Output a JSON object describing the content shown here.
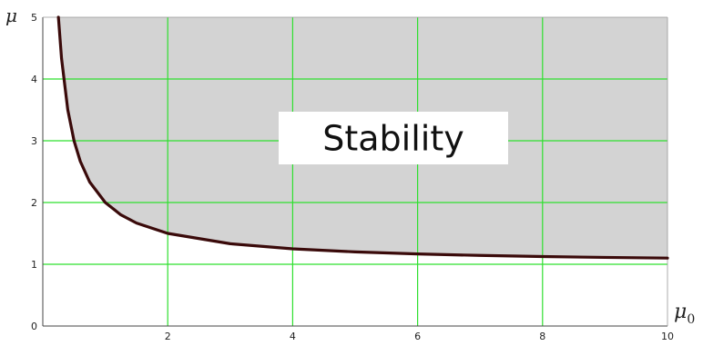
{
  "chart_data": {
    "type": "area",
    "title": "",
    "xlabel": "μ",
    "xlabel_sub": "0",
    "ylabel": "μ",
    "xlim": [
      0,
      10
    ],
    "ylim": [
      0,
      5
    ],
    "x_ticks": [
      2,
      4,
      6,
      8,
      10
    ],
    "y_ticks": [
      0,
      1,
      2,
      3,
      4,
      5
    ],
    "grid": true,
    "annotation": "Stability",
    "series": [
      {
        "x": [
          0.25,
          0.3,
          0.4,
          0.5,
          0.6,
          0.75,
          1,
          1.25,
          1.5,
          2,
          3,
          4,
          5,
          6,
          7,
          8,
          9,
          10
        ],
        "y": [
          5,
          4.333,
          3.5,
          3.0,
          2.667,
          2.333,
          2.0,
          1.8,
          1.667,
          1.5,
          1.333,
          1.25,
          1.2,
          1.167,
          1.143,
          1.125,
          1.111,
          1.1
        ]
      }
    ],
    "colors": {
      "region_fill": "#d3d3d3",
      "grid": "#2ee02e",
      "curve": "#3a0a0a",
      "axis": "#444444"
    }
  }
}
